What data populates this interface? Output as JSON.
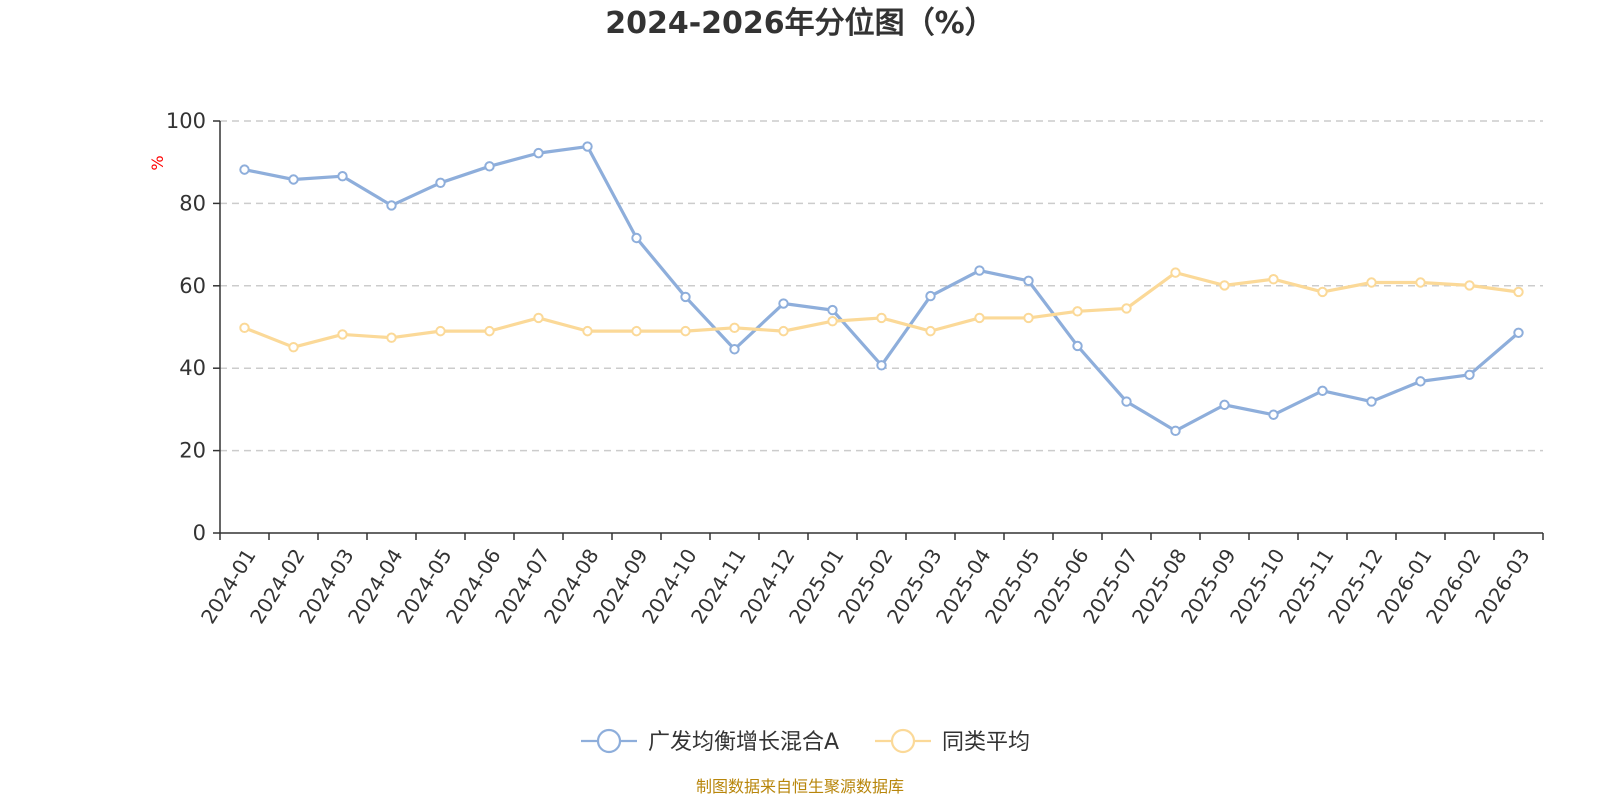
{
  "chart_data": {
    "type": "line",
    "title": "2024-2026年分位图（%）",
    "ylabel": "%",
    "xlabel": "",
    "ylim": [
      0,
      100
    ],
    "yticks": [
      0,
      20,
      40,
      60,
      80,
      100
    ],
    "grid": true,
    "legend_position": "bottom-center",
    "categories": [
      "2024-01",
      "2024-02",
      "2024-03",
      "2024-04",
      "2024-05",
      "2024-06",
      "2024-07",
      "2024-08",
      "2024-09",
      "2024-10",
      "2024-11",
      "2024-12",
      "2025-01",
      "2025-02",
      "2025-03",
      "2025-04",
      "2025-05",
      "2025-06",
      "2025-07",
      "2025-08",
      "2025-09",
      "2025-10",
      "2025-11",
      "2025-12",
      "2026-01",
      "2026-02",
      "2026-03"
    ],
    "series": [
      {
        "name": "广发均衡增长混合A",
        "color": "#8eaedb",
        "values": [
          88.2,
          85.8,
          86.6,
          79.5,
          85.0,
          89.0,
          92.2,
          93.8,
          71.6,
          57.3,
          44.6,
          55.7,
          54.1,
          40.7,
          57.5,
          63.7,
          61.2,
          45.4,
          31.9,
          24.8,
          31.1,
          28.7,
          34.5,
          31.9,
          36.8,
          38.4,
          48.6
        ]
      },
      {
        "name": "同类平均",
        "color": "#fbd998",
        "values": [
          49.8,
          45.1,
          48.2,
          47.4,
          49.0,
          49.0,
          52.2,
          49.0,
          49.0,
          49.0,
          49.8,
          49.0,
          51.4,
          52.2,
          49.0,
          52.2,
          52.2,
          53.8,
          54.5,
          63.2,
          60.1,
          61.6,
          58.5,
          60.8,
          60.8,
          60.1,
          58.5
        ]
      }
    ]
  },
  "footer": {
    "source": "制图数据来自恒生聚源数据库"
  },
  "colors": {
    "ylabel_color": "#ff0000",
    "source_color": "#b8860b",
    "grid_color": "#cccccc",
    "axis_color": "#333333"
  }
}
